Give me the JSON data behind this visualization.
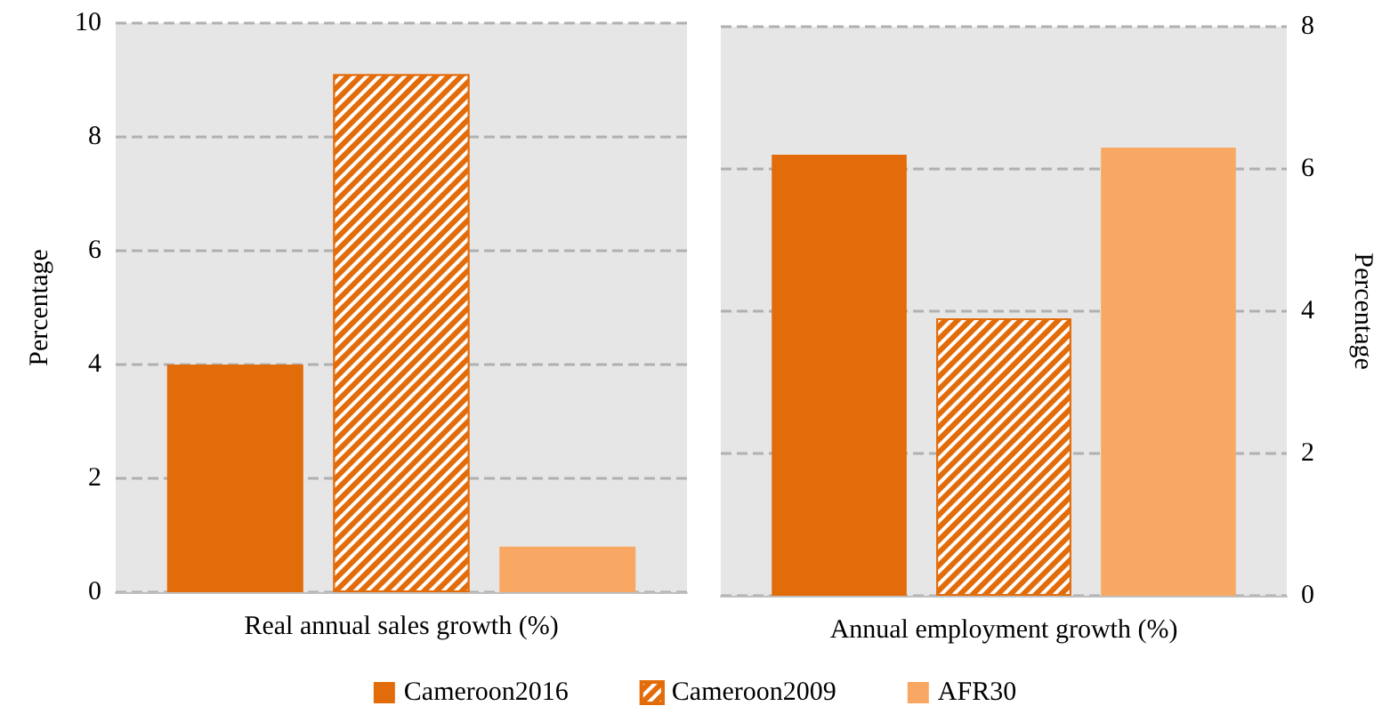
{
  "chart_data": [
    {
      "type": "bar",
      "categories": [
        "Real annual sales growth (%)"
      ],
      "ylabel": "Percentage",
      "ylim": [
        0,
        10
      ],
      "yticks": [
        0,
        2,
        4,
        6,
        8,
        10
      ],
      "grid": "y",
      "legend": "bottom",
      "series": [
        {
          "name": "Cameroon2016",
          "color": "#e36c0a",
          "values": [
            4.0
          ]
        },
        {
          "name": "Cameroon2009",
          "color": "#e36c0a",
          "values": [
            9.1
          ]
        },
        {
          "name": "AFR30",
          "color": "#f9a863",
          "values": [
            0.8
          ]
        }
      ]
    },
    {
      "type": "bar",
      "categories": [
        "Annual employment growth (%)"
      ],
      "ylabel": "Percentage",
      "ylim": [
        0,
        8
      ],
      "yticks": [
        0,
        2,
        4,
        6,
        8
      ],
      "grid": "y",
      "series": [
        {
          "color": "#e36c0a",
          "values": [
            6.2
          ]
        },
        {
          "color": "#e36c0a",
          "values": [
            3.9
          ]
        },
        {
          "color": "#f9a863",
          "values": [
            6.3
          ]
        }
      ]
    }
  ]
}
